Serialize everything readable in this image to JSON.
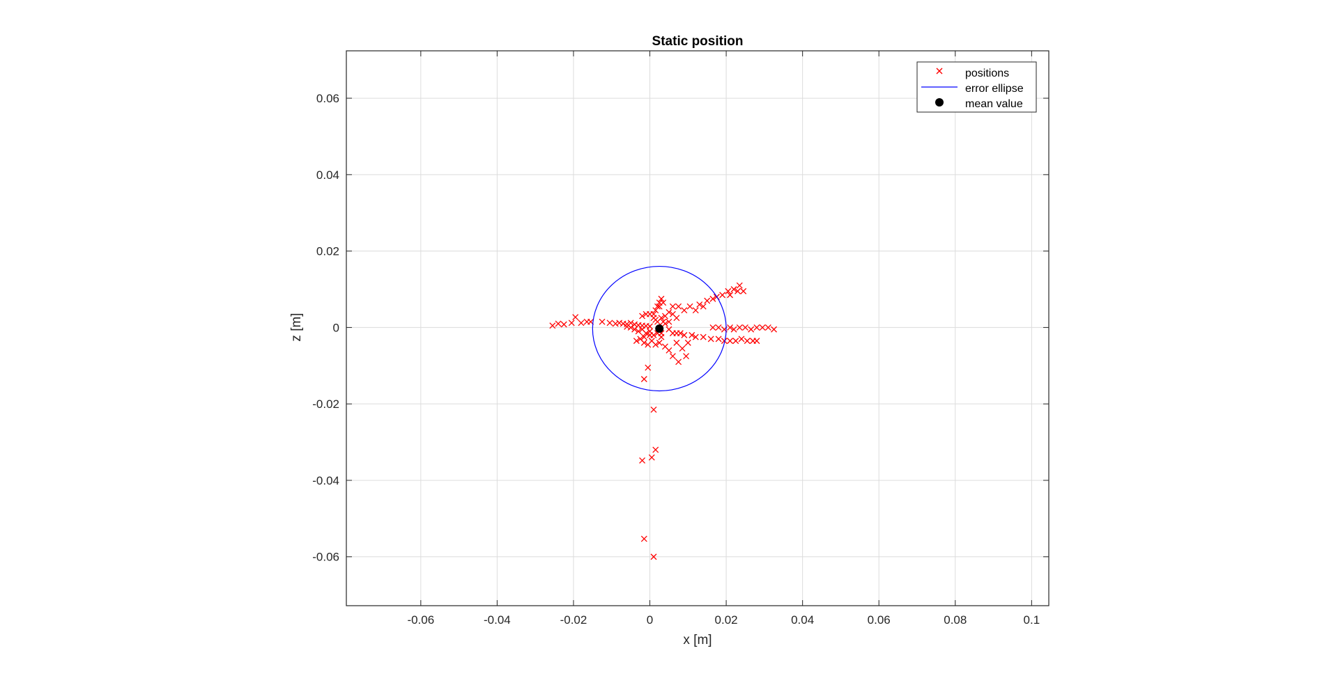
{
  "chart_data": {
    "type": "scatter",
    "title": "Static position",
    "xlabel": "x [m]",
    "ylabel": "z [m]",
    "xlim": [
      -0.0795,
      0.1045
    ],
    "ylim": [
      -0.0728,
      0.0724
    ],
    "xticks": [
      -0.06,
      -0.04,
      -0.02,
      0,
      0.02,
      0.04,
      0.06,
      0.08,
      0.1
    ],
    "yticks": [
      -0.06,
      -0.04,
      -0.02,
      0,
      0.02,
      0.04,
      0.06
    ],
    "xtick_labels": [
      "-0.06",
      "-0.04",
      "-0.02",
      "0",
      "0.02",
      "0.04",
      "0.06",
      "0.08",
      "0.1"
    ],
    "ytick_labels": [
      "-0.06",
      "-0.04",
      "-0.02",
      "0",
      "0.02",
      "0.04",
      "0.06"
    ],
    "grid": true,
    "legend_placement": "top-right",
    "legend": [
      {
        "label": "positions",
        "marker": "x",
        "color": "#ff0000"
      },
      {
        "label": "error ellipse",
        "marker": "line",
        "color": "#0000ff"
      },
      {
        "label": "mean value",
        "marker": "dot",
        "color": "#000000"
      }
    ],
    "series": [
      {
        "name": "positions",
        "kind": "scatter-x",
        "color": "#ff0000",
        "points": [
          [
            -0.0255,
            0.0005
          ],
          [
            -0.024,
            0.001
          ],
          [
            -0.0225,
            0.0008
          ],
          [
            -0.0205,
            0.0012
          ],
          [
            -0.0195,
            0.0027
          ],
          [
            -0.018,
            0.0012
          ],
          [
            -0.0165,
            0.0015
          ],
          [
            -0.0155,
            0.0015
          ],
          [
            -0.0125,
            0.0015
          ],
          [
            -0.0105,
            0.0012
          ],
          [
            -0.009,
            0.001
          ],
          [
            -0.008,
            0.0012
          ],
          [
            -0.007,
            0.001
          ],
          [
            -0.006,
            0.0009
          ],
          [
            -0.005,
            0.0012
          ],
          [
            -0.004,
            0.0008
          ],
          [
            -0.003,
            0.0006
          ],
          [
            -0.002,
            0.0005
          ],
          [
            -0.001,
            0.0004
          ],
          [
            0.0,
            0.0003
          ],
          [
            -0.004,
            -0.0005
          ],
          [
            -0.003,
            -0.001
          ],
          [
            -0.002,
            -0.0005
          ],
          [
            -0.001,
            -0.0015
          ],
          [
            0.0,
            -0.001
          ],
          [
            -0.005,
            0.0
          ],
          [
            -0.006,
            0.0002
          ],
          [
            -0.0035,
            -0.0035
          ],
          [
            -0.0025,
            -0.003
          ],
          [
            -0.0015,
            -0.004
          ],
          [
            -0.0005,
            -0.0045
          ],
          [
            0.0005,
            -0.0035
          ],
          [
            0.0015,
            -0.0045
          ],
          [
            0.0025,
            -0.004
          ],
          [
            -0.0015,
            -0.0025
          ],
          [
            0.0,
            -0.002
          ],
          [
            0.001,
            -0.002
          ],
          [
            0.002,
            -0.0015
          ],
          [
            0.003,
            -0.0015
          ],
          [
            0.003,
            -0.0025
          ],
          [
            -0.002,
            0.003
          ],
          [
            -0.001,
            0.0035
          ],
          [
            0.0,
            0.0035
          ],
          [
            0.001,
            0.0025
          ],
          [
            0.0015,
            0.0045
          ],
          [
            0.002,
            0.0055
          ],
          [
            0.0025,
            0.0065
          ],
          [
            0.003,
            0.0075
          ],
          [
            0.0035,
            0.0065
          ],
          [
            0.0025,
            0.0055
          ],
          [
            0.001,
            0.0035
          ],
          [
            0.0015,
            0.002
          ],
          [
            0.002,
            0.0015
          ],
          [
            0.003,
            0.0025
          ],
          [
            0.0035,
            0.0015
          ],
          [
            0.004,
            0.003
          ],
          [
            0.005,
            0.004
          ],
          [
            0.006,
            0.0055
          ],
          [
            0.0075,
            0.0055
          ],
          [
            0.009,
            0.0045
          ],
          [
            0.0105,
            0.0055
          ],
          [
            0.012,
            0.0045
          ],
          [
            0.013,
            0.006
          ],
          [
            0.014,
            0.0055
          ],
          [
            0.015,
            0.007
          ],
          [
            0.0165,
            0.0075
          ],
          [
            0.0175,
            0.008
          ],
          [
            0.019,
            0.0085
          ],
          [
            0.0205,
            0.0095
          ],
          [
            0.022,
            0.01
          ],
          [
            0.0235,
            0.011
          ],
          [
            0.0245,
            0.0095
          ],
          [
            0.023,
            0.0095
          ],
          [
            0.021,
            0.0085
          ],
          [
            0.006,
            0.0035
          ],
          [
            0.007,
            0.0025
          ],
          [
            0.005,
            0.0015
          ],
          [
            0.004,
            0.001
          ],
          [
            0.005,
            -0.0005
          ],
          [
            0.006,
            -0.0015
          ],
          [
            0.007,
            -0.0015
          ],
          [
            0.008,
            -0.0015
          ],
          [
            0.009,
            -0.002
          ],
          [
            0.011,
            -0.002
          ],
          [
            0.012,
            -0.0025
          ],
          [
            0.014,
            -0.0025
          ],
          [
            0.016,
            -0.003
          ],
          [
            0.018,
            -0.003
          ],
          [
            0.0195,
            -0.0035
          ],
          [
            0.021,
            -0.0035
          ],
          [
            0.0225,
            -0.0035
          ],
          [
            0.024,
            -0.003
          ],
          [
            0.0255,
            -0.0035
          ],
          [
            0.027,
            -0.0035
          ],
          [
            0.028,
            -0.0035
          ],
          [
            0.0165,
            0.0
          ],
          [
            0.018,
            0.0
          ],
          [
            0.0195,
            -0.0005
          ],
          [
            0.021,
            0.0
          ],
          [
            0.022,
            -0.0005
          ],
          [
            0.0235,
            0.0
          ],
          [
            0.025,
            0.0
          ],
          [
            0.0265,
            -0.0005
          ],
          [
            0.028,
            0.0
          ],
          [
            0.0295,
            0.0
          ],
          [
            0.031,
            0.0
          ],
          [
            0.0325,
            -0.0005
          ],
          [
            0.004,
            -0.005
          ],
          [
            0.005,
            -0.006
          ],
          [
            0.006,
            -0.0075
          ],
          [
            0.0075,
            -0.009
          ],
          [
            0.0095,
            -0.0075
          ],
          [
            0.0085,
            -0.0055
          ],
          [
            0.007,
            -0.004
          ],
          [
            0.01,
            -0.004
          ],
          [
            -0.0005,
            -0.0105
          ],
          [
            -0.0015,
            -0.0135
          ],
          [
            0.001,
            -0.0215
          ],
          [
            -0.002,
            -0.0348
          ],
          [
            0.0005,
            -0.034
          ],
          [
            0.0015,
            -0.032
          ],
          [
            -0.0015,
            -0.0553
          ],
          [
            0.001,
            -0.06
          ]
        ]
      },
      {
        "name": "error ellipse",
        "kind": "ellipse",
        "color": "#0000ff",
        "center": [
          0.0025,
          -0.0003
        ],
        "radius_x": 0.0175,
        "radius_z": 0.0163
      },
      {
        "name": "mean value",
        "kind": "dot",
        "color": "#000000",
        "points": [
          [
            0.0025,
            -0.0003
          ]
        ]
      }
    ]
  }
}
